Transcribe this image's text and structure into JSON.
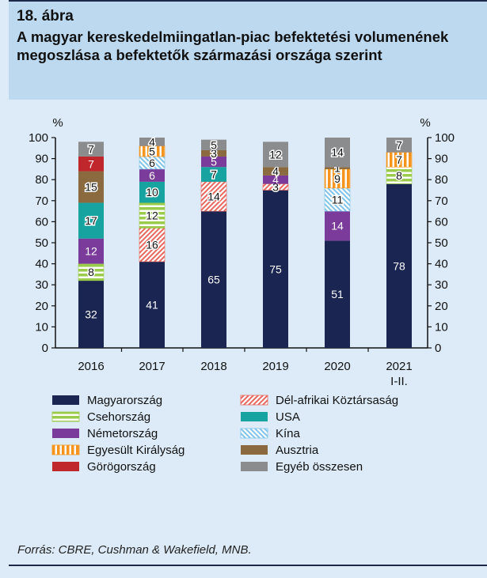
{
  "figure": {
    "number": "18. ábra",
    "title": "A magyar kereskedelmiingatlan-piac befektetési volumenének megoszlása a befektetők származási országa szerint",
    "source": "Forrás: CBRE, Cushman & Wakefield, MNB."
  },
  "chart_data": {
    "type": "bar",
    "stacked": true,
    "categories": [
      "2016",
      "2017",
      "2018",
      "2019",
      "2020",
      "2021 I-II."
    ],
    "y_unit_left": "%",
    "y_unit_right": "%",
    "ylim": [
      0,
      100
    ],
    "yticks": [
      0,
      10,
      20,
      30,
      40,
      50,
      60,
      70,
      80,
      90,
      100
    ],
    "legend_position": "bottom",
    "series": [
      {
        "name": "Magyarország",
        "color": "#1a2552",
        "pattern": "solid",
        "values": [
          32,
          41,
          65,
          75,
          51,
          78
        ]
      },
      {
        "name": "Csehország",
        "color": "#9bcb4a",
        "pattern": "hstripe",
        "values": [
          8,
          12,
          0,
          0,
          0,
          8
        ]
      },
      {
        "name": "Németország",
        "color": "#7a3b9a",
        "pattern": "solid",
        "values": [
          12,
          6,
          5,
          4,
          14,
          0
        ]
      },
      {
        "name": "Egyesült Királyság",
        "color": "#f7941d",
        "pattern": "vstripe",
        "values": [
          0,
          5,
          0,
          0,
          9,
          7
        ]
      },
      {
        "name": "Görögország",
        "color": "#c0272d",
        "pattern": "solid",
        "values": [
          7,
          0,
          0,
          0,
          0,
          0
        ]
      },
      {
        "name": "Dél-afrikai Köztársaság",
        "color": "#e8665c",
        "pattern": "diag-right",
        "values": [
          0,
          16,
          14,
          3,
          0,
          0
        ]
      },
      {
        "name": "USA",
        "color": "#17a3a0",
        "pattern": "solid",
        "values": [
          17,
          10,
          7,
          0,
          0,
          0
        ]
      },
      {
        "name": "Kína",
        "color": "#7fc3ea",
        "pattern": "diag-left",
        "values": [
          0,
          6,
          0,
          0,
          11,
          0
        ]
      },
      {
        "name": "Ausztria",
        "color": "#8a6a3e",
        "pattern": "solid",
        "values": [
          15,
          0,
          3,
          4,
          1,
          0
        ]
      },
      {
        "name": "Egyéb összesen",
        "color": "#8b8c8e",
        "pattern": "solid",
        "values": [
          7,
          4,
          5,
          12,
          14,
          7
        ]
      }
    ],
    "segment_order": [
      [
        "Magyarország",
        "Csehország",
        "Németország",
        "Egyesült Királyság",
        "USA",
        "Ausztria",
        "Görögország",
        "Egyéb összesen"
      ],
      [
        "Magyarország",
        "Dél-afrikai Köztársaság",
        "Csehország",
        "USA",
        "Németország",
        "Kína",
        "Egyesült Királyság",
        "Egyéb összesen"
      ],
      [
        "Magyarország",
        "Dél-afrikai Köztársaság",
        "USA",
        "Németország",
        "Ausztria",
        "Egyéb összesen"
      ],
      [
        "Magyarország",
        "Dél-afrikai Köztársaság",
        "Németország",
        "Ausztria",
        "Egyéb összesen"
      ],
      [
        "Magyarország",
        "Németország",
        "Kína",
        "Egyesült Királyság",
        "Ausztria",
        "Egyéb összesen"
      ],
      [
        "Magyarország",
        "Csehország",
        "Egyesült Királyság",
        "Egyéb összesen"
      ]
    ],
    "legend_order": [
      "Magyarország",
      "Dél-afrikai Köztársaság",
      "Csehország",
      "USA",
      "Németország",
      "Kína",
      "Egyesült Királyság",
      "Ausztria",
      "Görögország",
      "Egyéb összesen"
    ]
  }
}
